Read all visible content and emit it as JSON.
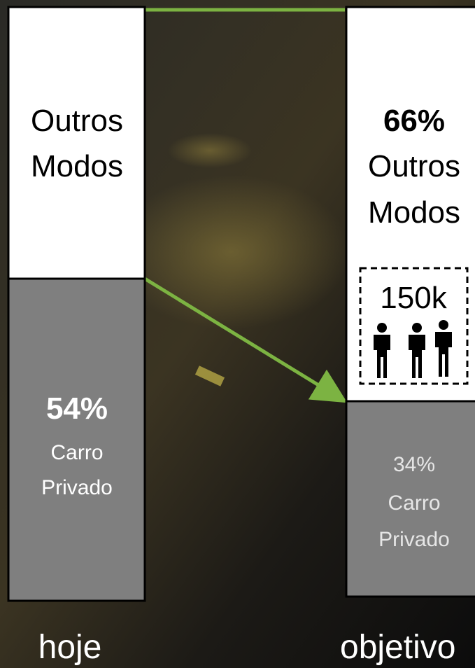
{
  "bars": [
    {
      "label": "hoje",
      "segments": [
        {
          "label": [
            "Outros",
            "Modos"
          ]
        },
        {
          "value": "54%",
          "label": [
            "Carro",
            "Privado"
          ]
        }
      ]
    },
    {
      "label": "objetivo",
      "segments": [
        {
          "value": "66%",
          "label": [
            "Outros",
            "Modos"
          ]
        },
        {
          "value": "34%",
          "label": [
            "Carro",
            "Privado"
          ]
        }
      ]
    }
  ],
  "badge": "150k"
}
